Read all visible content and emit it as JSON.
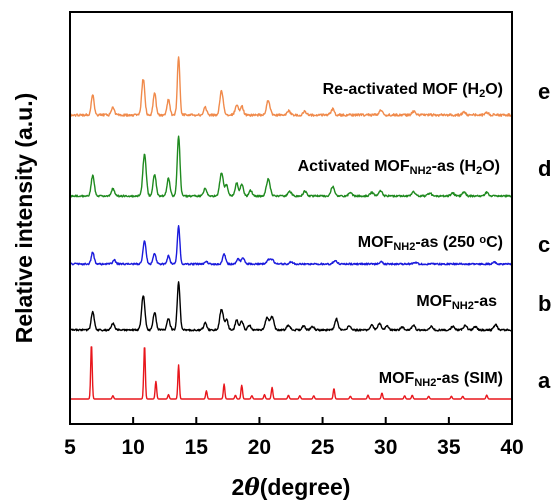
{
  "chart_data": {
    "type": "line",
    "title": "",
    "xlabel": "2θ (degree)",
    "xlabel_parts": {
      "prefix": "2",
      "symbol": "θ",
      "suffix": "(degree)"
    },
    "ylabel": "Relative intensity (a.u.)",
    "xlim": [
      5,
      40
    ],
    "x_ticks": [
      5,
      10,
      15,
      20,
      25,
      30,
      35,
      40
    ],
    "y_ticks_shown": false,
    "grid": false,
    "legend": "none",
    "series": [
      {
        "letter": "a",
        "name_parts": [
          {
            "t": "MOF"
          },
          {
            "t": "NH2",
            "sub": true
          },
          {
            "t": "-as (SIM)"
          }
        ],
        "color": "#e8161c",
        "noise": 0.0,
        "peaks": [
          [
            6.7,
            1.0,
            0.06
          ],
          [
            8.4,
            0.06,
            0.06
          ],
          [
            10.9,
            0.98,
            0.06
          ],
          [
            11.8,
            0.32,
            0.06
          ],
          [
            12.8,
            0.08,
            0.06
          ],
          [
            13.6,
            0.62,
            0.06
          ],
          [
            15.8,
            0.15,
            0.06
          ],
          [
            17.2,
            0.27,
            0.06
          ],
          [
            18.1,
            0.07,
            0.06
          ],
          [
            18.6,
            0.25,
            0.06
          ],
          [
            19.4,
            0.06,
            0.06
          ],
          [
            20.4,
            0.08,
            0.06
          ],
          [
            21.0,
            0.21,
            0.06
          ],
          [
            22.3,
            0.07,
            0.06
          ],
          [
            23.2,
            0.06,
            0.06
          ],
          [
            24.3,
            0.06,
            0.06
          ],
          [
            25.9,
            0.19,
            0.06
          ],
          [
            27.2,
            0.05,
            0.06
          ],
          [
            28.6,
            0.07,
            0.06
          ],
          [
            29.7,
            0.11,
            0.06
          ],
          [
            31.5,
            0.06,
            0.06
          ],
          [
            32.1,
            0.07,
            0.06
          ],
          [
            33.4,
            0.05,
            0.06
          ],
          [
            35.2,
            0.05,
            0.06
          ],
          [
            36.1,
            0.05,
            0.06
          ],
          [
            38.0,
            0.07,
            0.06
          ]
        ]
      },
      {
        "letter": "b",
        "name_parts": [
          {
            "t": "MOF"
          },
          {
            "t": "NH2",
            "sub": true
          },
          {
            "t": "-as"
          }
        ],
        "color": "#000000",
        "noise": 0.018,
        "peaks": [
          [
            6.8,
            0.36,
            0.12
          ],
          [
            8.4,
            0.13,
            0.12
          ],
          [
            10.8,
            0.68,
            0.13
          ],
          [
            11.7,
            0.36,
            0.12
          ],
          [
            12.8,
            0.22,
            0.12
          ],
          [
            13.6,
            0.95,
            0.11
          ],
          [
            15.7,
            0.14,
            0.12
          ],
          [
            17.0,
            0.42,
            0.14
          ],
          [
            17.4,
            0.2,
            0.12
          ],
          [
            18.2,
            0.2,
            0.12
          ],
          [
            18.6,
            0.18,
            0.12
          ],
          [
            19.2,
            0.1,
            0.12
          ],
          [
            20.6,
            0.24,
            0.14
          ],
          [
            21.0,
            0.26,
            0.14
          ],
          [
            22.3,
            0.1,
            0.13
          ],
          [
            23.5,
            0.08,
            0.13
          ],
          [
            24.2,
            0.07,
            0.13
          ],
          [
            26.1,
            0.22,
            0.13
          ],
          [
            27.1,
            0.08,
            0.13
          ],
          [
            28.9,
            0.1,
            0.13
          ],
          [
            29.5,
            0.13,
            0.13
          ],
          [
            30.1,
            0.08,
            0.13
          ],
          [
            31.3,
            0.06,
            0.13
          ],
          [
            32.2,
            0.09,
            0.13
          ],
          [
            33.6,
            0.07,
            0.13
          ],
          [
            35.3,
            0.07,
            0.13
          ],
          [
            36.3,
            0.1,
            0.13
          ],
          [
            37.1,
            0.07,
            0.13
          ],
          [
            38.7,
            0.11,
            0.13
          ]
        ]
      },
      {
        "letter": "c",
        "name_parts": [
          {
            "t": "MOF"
          },
          {
            "t": "NH2",
            "sub": true
          },
          {
            "t": "-as (250 "
          },
          {
            "t": "o",
            "sup": true
          },
          {
            "t": "C)"
          }
        ],
        "color": "#1a1adc",
        "noise": 0.022,
        "peaks": [
          [
            6.8,
            0.3,
            0.11
          ],
          [
            8.5,
            0.1,
            0.11
          ],
          [
            10.9,
            0.58,
            0.12
          ],
          [
            11.7,
            0.26,
            0.11
          ],
          [
            12.8,
            0.2,
            0.11
          ],
          [
            13.6,
            0.95,
            0.1
          ],
          [
            15.8,
            0.06,
            0.12
          ],
          [
            17.2,
            0.24,
            0.12
          ],
          [
            18.3,
            0.13,
            0.12
          ],
          [
            18.7,
            0.16,
            0.12
          ],
          [
            20.7,
            0.1,
            0.14
          ],
          [
            21.0,
            0.1,
            0.14
          ],
          [
            22.5,
            0.05,
            0.14
          ],
          [
            26.0,
            0.08,
            0.14
          ],
          [
            29.6,
            0.05,
            0.14
          ],
          [
            32.3,
            0.04,
            0.14
          ],
          [
            38.6,
            0.04,
            0.14
          ]
        ]
      },
      {
        "letter": "d",
        "name_parts": [
          {
            "t": "Activated MOF"
          },
          {
            "t": "NH2",
            "sub": true
          },
          {
            "t": "-as (H"
          },
          {
            "t": "2",
            "sub": true
          },
          {
            "t": "O)"
          }
        ],
        "color": "#1f8a1f",
        "noise": 0.015,
        "peaks": [
          [
            6.8,
            0.34,
            0.12
          ],
          [
            8.4,
            0.12,
            0.12
          ],
          [
            10.9,
            0.7,
            0.13
          ],
          [
            11.7,
            0.36,
            0.12
          ],
          [
            12.8,
            0.3,
            0.12
          ],
          [
            13.6,
            1.0,
            0.11
          ],
          [
            15.7,
            0.13,
            0.12
          ],
          [
            17.0,
            0.38,
            0.14
          ],
          [
            17.4,
            0.18,
            0.12
          ],
          [
            18.2,
            0.22,
            0.12
          ],
          [
            18.6,
            0.2,
            0.12
          ],
          [
            19.3,
            0.09,
            0.12
          ],
          [
            20.7,
            0.28,
            0.15
          ],
          [
            22.4,
            0.08,
            0.13
          ],
          [
            23.6,
            0.08,
            0.13
          ],
          [
            25.8,
            0.16,
            0.13
          ],
          [
            27.2,
            0.06,
            0.13
          ],
          [
            28.9,
            0.06,
            0.13
          ],
          [
            29.6,
            0.09,
            0.13
          ],
          [
            32.2,
            0.07,
            0.13
          ],
          [
            33.5,
            0.05,
            0.13
          ],
          [
            35.3,
            0.05,
            0.13
          ],
          [
            36.2,
            0.07,
            0.13
          ],
          [
            38.0,
            0.06,
            0.13
          ]
        ]
      },
      {
        "letter": "e",
        "name_parts": [
          {
            "t": "Re-activated MOF (H"
          },
          {
            "t": "2",
            "sub": true
          },
          {
            "t": "O)"
          }
        ],
        "color": "#f08a4b",
        "noise": 0.02,
        "peaks": [
          [
            6.8,
            0.34,
            0.11
          ],
          [
            8.4,
            0.13,
            0.11
          ],
          [
            10.8,
            0.6,
            0.12
          ],
          [
            11.7,
            0.36,
            0.11
          ],
          [
            12.8,
            0.26,
            0.11
          ],
          [
            13.6,
            0.98,
            0.1
          ],
          [
            15.7,
            0.13,
            0.12
          ],
          [
            17.0,
            0.4,
            0.13
          ],
          [
            18.2,
            0.18,
            0.12
          ],
          [
            18.6,
            0.15,
            0.12
          ],
          [
            20.7,
            0.24,
            0.14
          ],
          [
            22.3,
            0.07,
            0.13
          ],
          [
            23.6,
            0.06,
            0.13
          ],
          [
            25.8,
            0.1,
            0.13
          ],
          [
            29.6,
            0.07,
            0.13
          ],
          [
            32.2,
            0.06,
            0.13
          ],
          [
            36.2,
            0.05,
            0.13
          ],
          [
            38.0,
            0.05,
            0.13
          ]
        ]
      }
    ]
  }
}
